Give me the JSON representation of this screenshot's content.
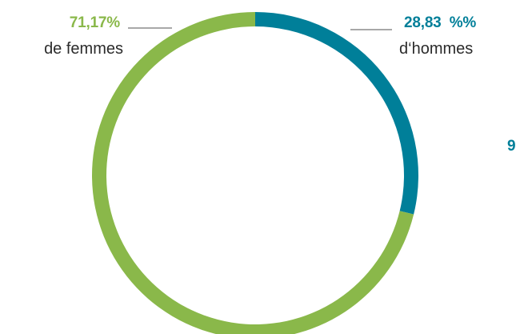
{
  "chart_data": {
    "type": "pie",
    "variant": "donut",
    "categories": [
      "de femmes",
      "d‘hommes"
    ],
    "values": [
      71.17,
      28.83
    ],
    "colors": [
      "#8ab84a",
      "#007f99"
    ],
    "annotations": [
      {
        "value_text": "71,17%",
        "label": "de femmes",
        "color": "#8ab84a"
      },
      {
        "value_text": "28,83  %%",
        "label": "d‘hommes",
        "color": "#007f99"
      }
    ],
    "clipped_text": "9"
  }
}
